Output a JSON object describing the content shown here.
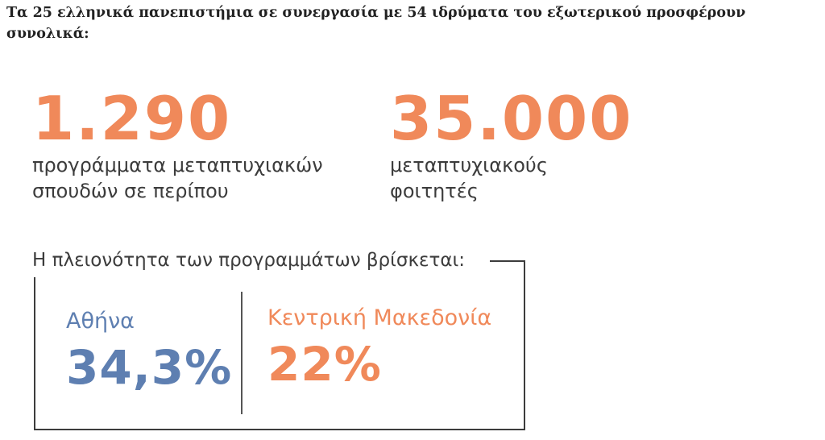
{
  "headline": "Τα 25 ελληνικά πανεπιστήμια σε συνεργασία με 54 ιδρύματα του εξωτερικού προσφέρουν συνολικά:",
  "stats": [
    {
      "value": "1.290",
      "line1": "προγράμματα μεταπτυχιακών",
      "line2": "σπουδών σε περίπου"
    },
    {
      "value": "35.000",
      "line1": "μεταπτυχιακούς",
      "line2": "φοιτητές"
    }
  ],
  "majority": {
    "title": "Η πλειονότητα των προγραμμάτων βρίσκεται:",
    "regions": [
      {
        "name": "Αθήνα",
        "value": "34,3%",
        "color": "#5e7fb1"
      },
      {
        "name": "Κεντρική Μακεδονία",
        "value": "22%",
        "color": "#f0895a"
      }
    ]
  },
  "colors": {
    "accent": "#f0895a",
    "blue": "#5e7fb1",
    "text": "#3c3c3c"
  }
}
